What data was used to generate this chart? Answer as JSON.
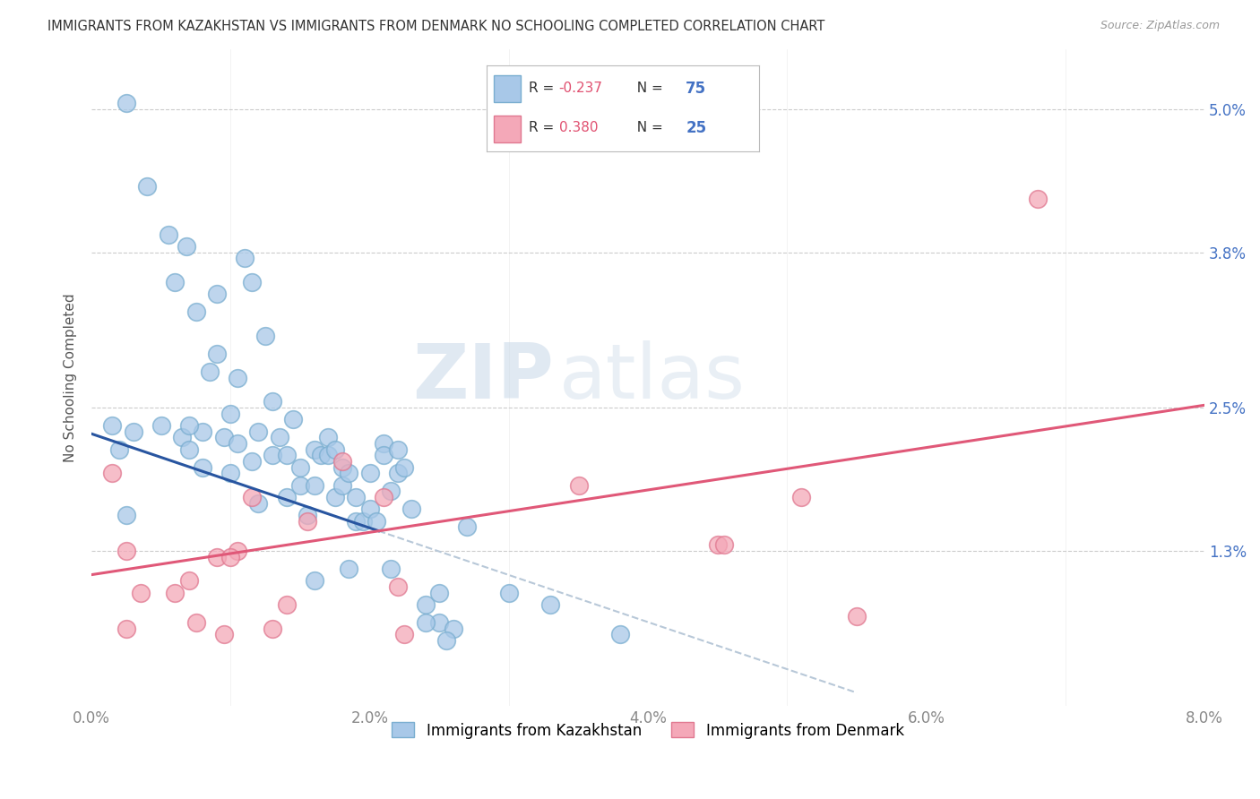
{
  "title": "IMMIGRANTS FROM KAZAKHSTAN VS IMMIGRANTS FROM DENMARK NO SCHOOLING COMPLETED CORRELATION CHART",
  "source": "Source: ZipAtlas.com",
  "ylabel": "No Schooling Completed",
  "legend_label_blue": "Immigrants from Kazakhstan",
  "legend_label_pink": "Immigrants from Denmark",
  "R_blue": "-0.237",
  "N_blue": "75",
  "R_pink": "0.380",
  "N_pink": "25",
  "xlim": [
    0.0,
    8.0
  ],
  "ylim": [
    0.0,
    5.5
  ],
  "yticks": [
    0.0,
    1.3,
    2.5,
    3.8,
    5.0
  ],
  "xticks": [
    0.0,
    2.0,
    4.0,
    6.0,
    8.0
  ],
  "xtick_labels": [
    "0.0%",
    "2.0%",
    "4.0%",
    "6.0%",
    "8.0%"
  ],
  "ytick_labels": [
    "",
    "1.3%",
    "2.5%",
    "3.8%",
    "5.0%"
  ],
  "color_blue": "#a8c8e8",
  "color_pink": "#f4a8b8",
  "edge_blue": "#7aaed0",
  "edge_pink": "#e07890",
  "trend_blue": "#2855a0",
  "trend_pink": "#e05878",
  "trend_dash": "#b8c8d8",
  "background_color": "#ffffff",
  "blue_scatter_x": [
    0.25,
    0.4,
    0.55,
    0.6,
    0.65,
    0.68,
    0.7,
    0.75,
    0.8,
    0.85,
    0.9,
    0.9,
    0.95,
    1.0,
    1.0,
    1.05,
    1.1,
    1.15,
    1.15,
    1.2,
    1.25,
    1.3,
    1.3,
    1.35,
    1.4,
    1.4,
    1.45,
    1.5,
    1.5,
    1.55,
    1.6,
    1.6,
    1.65,
    1.7,
    1.7,
    1.75,
    1.75,
    1.8,
    1.8,
    1.85,
    1.9,
    1.9,
    1.95,
    2.0,
    2.0,
    2.05,
    2.1,
    2.1,
    2.15,
    2.2,
    2.2,
    2.25,
    2.3,
    2.4,
    2.5,
    2.5,
    2.6,
    2.7,
    0.3,
    0.5,
    0.7,
    0.8,
    1.05,
    1.2,
    1.6,
    1.85,
    2.15,
    2.4,
    2.55,
    3.0,
    3.3,
    3.8,
    0.15,
    0.2,
    0.25
  ],
  "blue_scatter_y": [
    5.05,
    4.35,
    3.95,
    3.55,
    2.25,
    3.85,
    2.15,
    3.3,
    2.3,
    2.8,
    3.45,
    2.95,
    2.25,
    1.95,
    2.45,
    2.75,
    3.75,
    3.55,
    2.05,
    2.3,
    3.1,
    2.55,
    2.1,
    2.25,
    2.1,
    1.75,
    2.4,
    2.0,
    1.85,
    1.6,
    2.15,
    1.85,
    2.1,
    2.1,
    2.25,
    2.15,
    1.75,
    1.85,
    2.0,
    1.95,
    1.55,
    1.75,
    1.55,
    1.95,
    1.65,
    1.55,
    2.2,
    2.1,
    1.8,
    2.15,
    1.95,
    2.0,
    1.65,
    0.85,
    0.7,
    0.95,
    0.65,
    1.5,
    2.3,
    2.35,
    2.35,
    2.0,
    2.2,
    1.7,
    1.05,
    1.15,
    1.15,
    0.7,
    0.55,
    0.95,
    0.85,
    0.6,
    2.35,
    2.15,
    1.6
  ],
  "pink_scatter_x": [
    0.15,
    0.25,
    0.35,
    0.6,
    0.7,
    0.75,
    0.9,
    0.95,
    1.05,
    1.15,
    1.3,
    1.4,
    1.55,
    1.8,
    2.1,
    2.2,
    2.25,
    3.5,
    4.5,
    4.55,
    5.1,
    5.5,
    6.8,
    0.25,
    1.0
  ],
  "pink_scatter_y": [
    1.95,
    1.3,
    0.95,
    0.95,
    1.05,
    0.7,
    1.25,
    0.6,
    1.3,
    1.75,
    0.65,
    0.85,
    1.55,
    2.05,
    1.75,
    1.0,
    0.6,
    1.85,
    1.35,
    1.35,
    1.75,
    0.75,
    4.25,
    0.65,
    1.25
  ],
  "blue_trend_x0": 0.0,
  "blue_trend_y0": 2.28,
  "blue_trend_x1": 3.5,
  "blue_trend_y1": 0.9,
  "pink_trend_x0": 0.0,
  "pink_trend_y0": 1.1,
  "pink_trend_x1": 8.0,
  "pink_trend_y1": 2.52
}
